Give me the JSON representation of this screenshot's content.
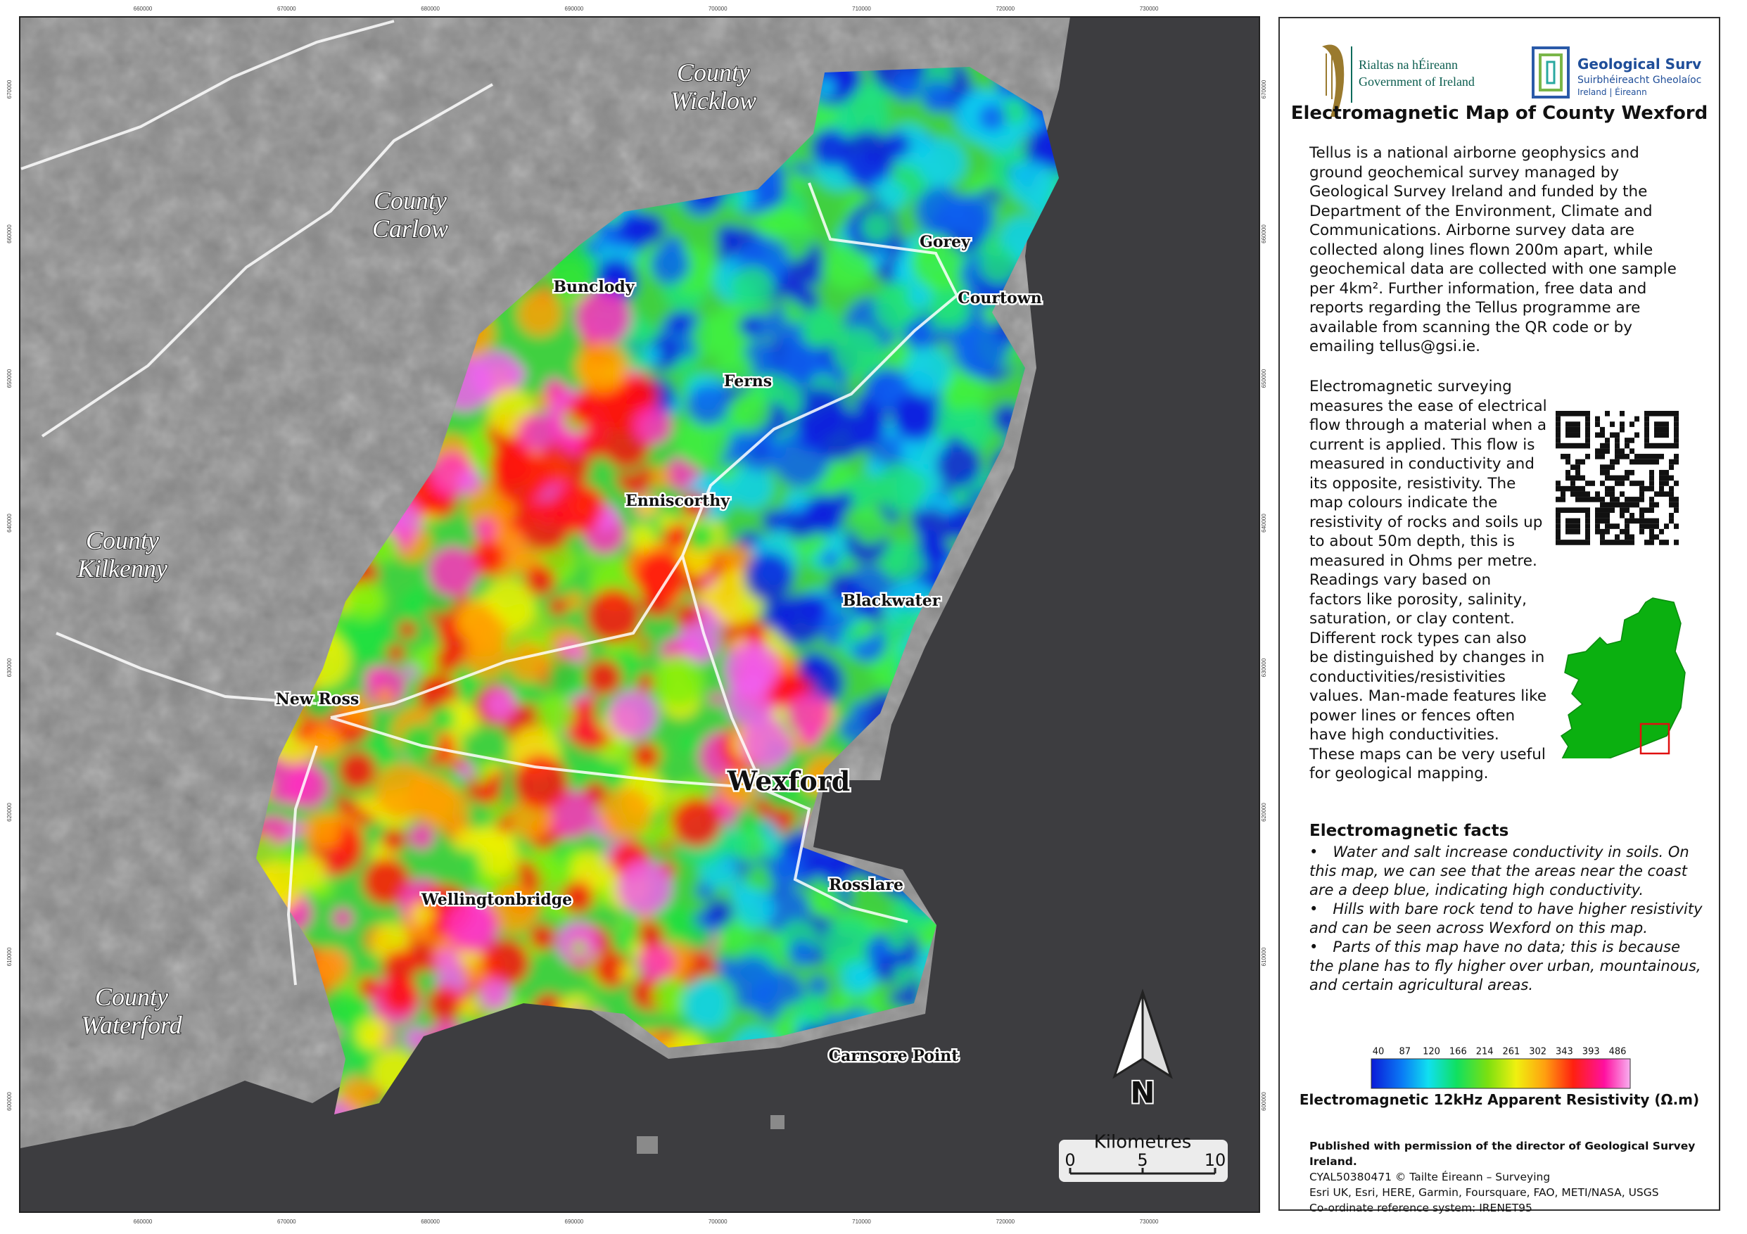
{
  "header": {
    "government": {
      "line1": "Rialtas na hÉireann",
      "line2": "Government of Ireland"
    },
    "survey": {
      "line1": "Geological Survey",
      "line2": "Suirbhéireacht Gheolaíochta",
      "line3": "Ireland | Éireann"
    }
  },
  "title": "Electromagnetic Map of County Wexford",
  "intro": "Tellus is a national airborne geophysics and ground geochemical survey managed by Geological Survey Ireland and funded by the Department of the Environment, Climate and Communications. Airborne survey data are collected along lines flown 200m apart, while geochemical data are collected with one sample per 4km².  Further information, free data and reports regarding the Tellus programme are available from scanning the QR code or by emailing tellus@gsi.ie.",
  "explanation": "Electromagnetic surveying measures the ease of electrical flow through a material when a current is applied. This flow is measured in conductivity and its opposite, resistivity. The map colours indicate the resistivity of rocks and soils up to about 50m depth, this is measured in Ohms per metre. Readings vary based on factors like porosity, salinity, saturation, or clay content. Different rock types can also be distinguished by changes in conductivities/resistivities values. Man-made features like power lines or fences often have high conductivities. These maps can be very useful for geological mapping.",
  "facts": {
    "heading": "Electromagnetic facts",
    "items": [
      "Water and salt increase conductivity in soils. On this map, we can see that the areas near the coast are a deep blue, indicating high conductivity.",
      "Hills with bare rock tend to have higher resistivity and can be seen across Wexford on this map.",
      "Parts of this map have no data; this is because the plane has to fly higher over urban, mountainous, and certain agricultural areas."
    ]
  },
  "legend": {
    "ticks": [
      40,
      87,
      120,
      166,
      214,
      261,
      302,
      343,
      393,
      486
    ],
    "label": "Electromagnetic 12kHz Apparent Resistivity (Ω.m)"
  },
  "credits": [
    "Published with permission of the director of Geological Survey Ireland.",
    "CYAL50380471 © Tailte Éireann – Surveying",
    "Esri UK, Esri, HERE, Garmin, Foursquare, FAO, METI/NASA, USGS",
    "Co-ordinate reference system: IRENET95"
  ],
  "map": {
    "counties": [
      "County Wicklow",
      "County Carlow",
      "County Kilkenny",
      "County Waterford"
    ],
    "places": [
      "Bunclody",
      "Gorey",
      "Courtown",
      "Ferns",
      "Enniscorthy",
      "Blackwater",
      "New Ross",
      "Wexford",
      "Rosslare",
      "Wellingtonbridge",
      "Carnsore Point"
    ],
    "eastings": [
      660000,
      670000,
      680000,
      690000,
      700000,
      710000,
      720000,
      730000
    ],
    "northings": [
      670000,
      660000,
      650000,
      640000,
      630000,
      620000,
      610000,
      600000
    ],
    "north": "N",
    "scale": {
      "title": "Kilometres",
      "ticks": [
        0,
        5,
        10
      ]
    }
  }
}
